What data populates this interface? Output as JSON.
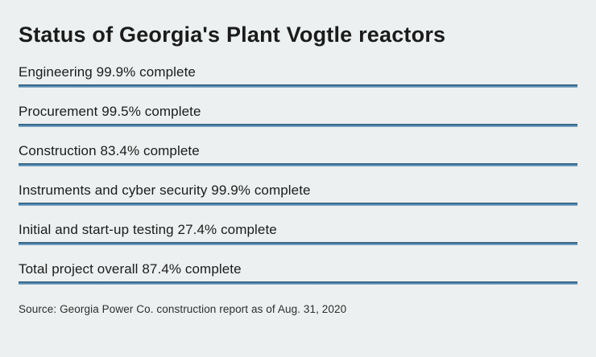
{
  "title": "Status of Georgia's Plant Vogtle reactors",
  "rows": [
    {
      "label": "Engineering 99.9% complete"
    },
    {
      "label": "Procurement 99.5% complete"
    },
    {
      "label": "Construction 83.4% complete"
    },
    {
      "label": "Instruments and cyber security 99.9% complete"
    },
    {
      "label": "Initial and start-up testing 27.4% complete"
    },
    {
      "label": "Total project overall 87.4% complete"
    }
  ],
  "source": "Source: Georgia Power Co. construction report as of Aug. 31, 2020",
  "colors": {
    "background": "#edf0f0",
    "text": "#1b1b1b",
    "rule_blue": "#3e7aa9"
  },
  "chart_data": {
    "type": "table",
    "title": "Status of Georgia's Plant Vogtle reactors",
    "categories": [
      "Engineering",
      "Procurement",
      "Construction",
      "Instruments and cyber security",
      "Initial and start-up testing",
      "Total project overall"
    ],
    "values": [
      99.9,
      99.5,
      83.4,
      99.9,
      27.4,
      87.4
    ],
    "unit": "% complete",
    "source": "Source: Georgia Power Co. construction report as of Aug. 31, 2020"
  }
}
